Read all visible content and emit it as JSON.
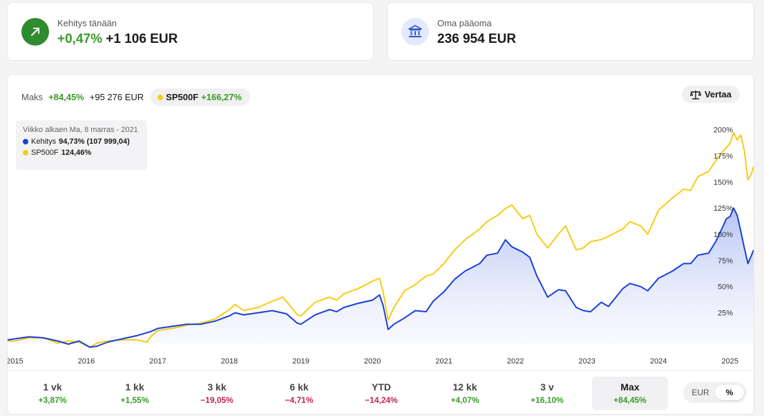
{
  "summary": {
    "today": {
      "label": "Kehitys tänään",
      "pct": "+0,47%",
      "abs": "+1 106 EUR",
      "icon": "arrow-up-right-icon"
    },
    "equity": {
      "label": "Oma pääoma",
      "value": "236 954 EUR",
      "icon": "bank-building-icon"
    }
  },
  "chart_header": {
    "maks_label": "Maks",
    "maks_pct": "+84,45%",
    "maks_abs": "+95 276 EUR",
    "benchmark_name": "SP500F",
    "benchmark_pct": "+166,27%",
    "compare_label": "Vertaa",
    "compare_icon": "scale-icon"
  },
  "tooltip": {
    "title": "Viikko alkaen Ma, 8 marras - 2021",
    "rows": [
      {
        "name": "Kehitys",
        "value": "94,73% (107 999,04)"
      },
      {
        "name": "SP500F",
        "value": "124,46%"
      }
    ]
  },
  "colors": {
    "portfolio": "#1a3fd6",
    "benchmark": "#f7cb15",
    "positive": "#3a9a2a",
    "negative": "#c0235b"
  },
  "chart_data": {
    "type": "line",
    "title": "",
    "xlabel": "",
    "ylabel": "",
    "x_ticks": [
      "2015",
      "2016",
      "2017",
      "2018",
      "2019",
      "2020",
      "2021",
      "2022",
      "2023",
      "2024",
      "2025"
    ],
    "y_ticks": [
      "25%",
      "50%",
      "75%",
      "100%",
      "125%",
      "150%",
      "175%",
      "200%"
    ],
    "ylim": [
      -5,
      205
    ],
    "x_range": [
      2014.9,
      2025.33
    ],
    "series": [
      {
        "name": "Kehitys",
        "color": "#1a3fd6",
        "area": true,
        "points": [
          [
            2014.9,
            -1
          ],
          [
            2015.0,
            0
          ],
          [
            2015.2,
            2
          ],
          [
            2015.4,
            1
          ],
          [
            2015.6,
            -2
          ],
          [
            2015.75,
            -5
          ],
          [
            2015.9,
            -2
          ],
          [
            2016.05,
            -8
          ],
          [
            2016.15,
            -7
          ],
          [
            2016.3,
            -3
          ],
          [
            2016.5,
            0
          ],
          [
            2016.7,
            3
          ],
          [
            2016.9,
            7
          ],
          [
            2017.0,
            10
          ],
          [
            2017.2,
            12
          ],
          [
            2017.4,
            14
          ],
          [
            2017.6,
            14
          ],
          [
            2017.8,
            17
          ],
          [
            2018.0,
            22
          ],
          [
            2018.08,
            25
          ],
          [
            2018.2,
            23
          ],
          [
            2018.4,
            25
          ],
          [
            2018.6,
            27
          ],
          [
            2018.8,
            24
          ],
          [
            2018.95,
            15
          ],
          [
            2019.0,
            14
          ],
          [
            2019.2,
            23
          ],
          [
            2019.4,
            28
          ],
          [
            2019.5,
            26
          ],
          [
            2019.6,
            30
          ],
          [
            2019.8,
            34
          ],
          [
            2020.0,
            37
          ],
          [
            2020.1,
            42
          ],
          [
            2020.15,
            32
          ],
          [
            2020.22,
            9
          ],
          [
            2020.3,
            14
          ],
          [
            2020.45,
            20
          ],
          [
            2020.6,
            27
          ],
          [
            2020.75,
            26
          ],
          [
            2020.85,
            36
          ],
          [
            2021.0,
            45
          ],
          [
            2021.15,
            57
          ],
          [
            2021.3,
            65
          ],
          [
            2021.5,
            72
          ],
          [
            2021.6,
            80
          ],
          [
            2021.75,
            82
          ],
          [
            2021.86,
            94.7
          ],
          [
            2021.95,
            88
          ],
          [
            2022.1,
            83
          ],
          [
            2022.2,
            78
          ],
          [
            2022.3,
            60
          ],
          [
            2022.45,
            40
          ],
          [
            2022.6,
            47
          ],
          [
            2022.7,
            46
          ],
          [
            2022.85,
            30
          ],
          [
            2022.95,
            27
          ],
          [
            2023.05,
            26
          ],
          [
            2023.2,
            35
          ],
          [
            2023.3,
            31
          ],
          [
            2023.5,
            48
          ],
          [
            2023.6,
            53
          ],
          [
            2023.75,
            50
          ],
          [
            2023.85,
            46
          ],
          [
            2024.0,
            58
          ],
          [
            2024.2,
            65
          ],
          [
            2024.35,
            72
          ],
          [
            2024.45,
            72
          ],
          [
            2024.55,
            80
          ],
          [
            2024.7,
            82
          ],
          [
            2024.8,
            93
          ],
          [
            2024.85,
            100
          ],
          [
            2024.95,
            115
          ],
          [
            2025.0,
            117
          ],
          [
            2025.05,
            125
          ],
          [
            2025.1,
            118
          ],
          [
            2025.15,
            103
          ],
          [
            2025.2,
            87
          ],
          [
            2025.25,
            72
          ],
          [
            2025.3,
            80
          ],
          [
            2025.33,
            85
          ]
        ]
      },
      {
        "name": "SP500F",
        "color": "#f7cb15",
        "area": false,
        "points": [
          [
            2014.9,
            -2
          ],
          [
            2015.0,
            -2
          ],
          [
            2015.2,
            1
          ],
          [
            2015.4,
            1
          ],
          [
            2015.6,
            -4
          ],
          [
            2015.75,
            -2
          ],
          [
            2015.9,
            -3
          ],
          [
            2016.05,
            -8
          ],
          [
            2016.15,
            -4
          ],
          [
            2016.3,
            -2
          ],
          [
            2016.5,
            -1
          ],
          [
            2016.7,
            -1
          ],
          [
            2016.85,
            -3
          ],
          [
            2016.9,
            2
          ],
          [
            2017.0,
            8
          ],
          [
            2017.2,
            10
          ],
          [
            2017.4,
            13
          ],
          [
            2017.6,
            15
          ],
          [
            2017.8,
            19
          ],
          [
            2018.0,
            28
          ],
          [
            2018.08,
            33
          ],
          [
            2018.2,
            27
          ],
          [
            2018.4,
            30
          ],
          [
            2018.6,
            36
          ],
          [
            2018.75,
            40
          ],
          [
            2018.95,
            23
          ],
          [
            2019.0,
            22
          ],
          [
            2019.2,
            35
          ],
          [
            2019.4,
            40
          ],
          [
            2019.5,
            37
          ],
          [
            2019.6,
            43
          ],
          [
            2019.8,
            48
          ],
          [
            2020.0,
            55
          ],
          [
            2020.1,
            58
          ],
          [
            2020.15,
            45
          ],
          [
            2020.22,
            18
          ],
          [
            2020.3,
            30
          ],
          [
            2020.45,
            46
          ],
          [
            2020.6,
            52
          ],
          [
            2020.75,
            60
          ],
          [
            2020.85,
            62
          ],
          [
            2021.0,
            72
          ],
          [
            2021.15,
            85
          ],
          [
            2021.3,
            95
          ],
          [
            2021.5,
            105
          ],
          [
            2021.6,
            112
          ],
          [
            2021.75,
            118
          ],
          [
            2021.86,
            124.5
          ],
          [
            2021.95,
            128
          ],
          [
            2022.1,
            115
          ],
          [
            2022.2,
            118
          ],
          [
            2022.3,
            100
          ],
          [
            2022.45,
            87
          ],
          [
            2022.6,
            100
          ],
          [
            2022.7,
            108
          ],
          [
            2022.85,
            85
          ],
          [
            2022.95,
            87
          ],
          [
            2023.05,
            93
          ],
          [
            2023.2,
            95
          ],
          [
            2023.3,
            98
          ],
          [
            2023.5,
            105
          ],
          [
            2023.6,
            112
          ],
          [
            2023.75,
            108
          ],
          [
            2023.85,
            100
          ],
          [
            2024.0,
            123
          ],
          [
            2024.2,
            135
          ],
          [
            2024.35,
            143
          ],
          [
            2024.45,
            142
          ],
          [
            2024.55,
            155
          ],
          [
            2024.7,
            160
          ],
          [
            2024.8,
            170
          ],
          [
            2024.85,
            175
          ],
          [
            2024.95,
            183
          ],
          [
            2025.0,
            187
          ],
          [
            2025.05,
            197
          ],
          [
            2025.1,
            190
          ],
          [
            2025.15,
            195
          ],
          [
            2025.2,
            180
          ],
          [
            2025.25,
            152
          ],
          [
            2025.3,
            158
          ],
          [
            2025.33,
            165
          ]
        ]
      }
    ],
    "grid": false,
    "legend": "none"
  },
  "periods": [
    {
      "label": "1 vk",
      "value": "+3,87%",
      "sign": "pos",
      "active": false
    },
    {
      "label": "1 kk",
      "value": "+1,55%",
      "sign": "pos",
      "active": false
    },
    {
      "label": "3 kk",
      "value": "−19,05%",
      "sign": "neg",
      "active": false
    },
    {
      "label": "6 kk",
      "value": "−4,71%",
      "sign": "neg",
      "active": false
    },
    {
      "label": "YTD",
      "value": "−14,24%",
      "sign": "neg",
      "active": false
    },
    {
      "label": "12 kk",
      "value": "+4,07%",
      "sign": "pos",
      "active": false
    },
    {
      "label": "3 v",
      "value": "+16,10%",
      "sign": "pos",
      "active": false
    },
    {
      "label": "Max",
      "value": "+84,45%",
      "sign": "pos",
      "active": true
    }
  ],
  "unit_toggle": {
    "options": [
      "EUR",
      "%"
    ],
    "selected": "%"
  }
}
